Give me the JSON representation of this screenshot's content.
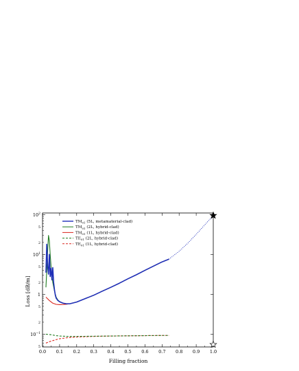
{
  "chart_data": {
    "type": "line",
    "title": "",
    "xlabel": "Filling fraction",
    "ylabel": "Loss [dB/m]",
    "xlim": [
      0,
      1
    ],
    "ylim_log10": [
      -1.32,
      2.04
    ],
    "yscale": "log",
    "grid": false,
    "legend_position": "top-left",
    "x_ticks": [
      "0.0",
      "0.1",
      "0.2",
      "0.3",
      "0.4",
      "0.5",
      "0.6",
      "0.7",
      "0.8",
      "0.9",
      "1.0"
    ],
    "y_tick_values": [
      0.1,
      1,
      10,
      100
    ],
    "y_minor_labels": [
      "5",
      "2",
      "5",
      "2",
      "5",
      "2",
      "5"
    ],
    "y_minor_values": [
      0.05,
      0.2,
      0.5,
      2,
      5,
      20,
      50
    ],
    "series": [
      {
        "name": "TM01 (5L, metamaterial-clad)",
        "legend_main": "TM",
        "legend_sub": "01",
        "legend_rest": " (5L, metamaterial-clad)",
        "color": "#1f2fb8",
        "dash": "solid",
        "width": 1.6,
        "x": [
          0.02,
          0.025,
          0.03,
          0.035,
          0.04,
          0.045,
          0.05,
          0.055,
          0.06,
          0.065,
          0.07,
          0.075,
          0.08,
          0.09,
          0.1,
          0.12,
          0.14,
          0.16,
          0.2,
          0.25,
          0.3,
          0.35,
          0.4,
          0.45,
          0.5,
          0.55,
          0.6,
          0.65,
          0.7,
          0.74
        ],
        "y": [
          3.5,
          18,
          5,
          3.2,
          10,
          2.8,
          4.5,
          2.3,
          4.7,
          2.0,
          1.3,
          0.95,
          0.8,
          0.7,
          0.65,
          0.6,
          0.58,
          0.58,
          0.64,
          0.78,
          0.95,
          1.2,
          1.5,
          1.9,
          2.45,
          3.1,
          4.0,
          5.1,
          6.5,
          7.6
        ]
      },
      {
        "name": "TM01 (2L, hybrid-clad)",
        "legend_main": "TM",
        "legend_sub": "01",
        "legend_rest": " (2L, hybrid-clad)",
        "color": "#1e7a1e",
        "dash": "solid",
        "width": 1.1,
        "x": [
          0.02,
          0.025,
          0.03,
          0.035,
          0.04,
          0.045,
          0.05,
          0.055,
          0.06,
          0.07,
          0.08,
          0.09,
          0.1,
          0.12,
          0.14,
          0.16,
          0.2,
          0.25,
          0.3,
          0.35,
          0.4,
          0.45,
          0.5,
          0.55,
          0.6,
          0.65,
          0.7,
          0.74
        ],
        "y": [
          1.5,
          4,
          12,
          30,
          22,
          10,
          5,
          3,
          2.0,
          1.2,
          0.85,
          0.72,
          0.66,
          0.6,
          0.58,
          0.58,
          0.64,
          0.78,
          0.95,
          1.2,
          1.5,
          1.9,
          2.45,
          3.1,
          4.0,
          5.1,
          6.5,
          7.6
        ]
      },
      {
        "name": "TM01 (1L, hybrid-clad)",
        "legend_main": "TM",
        "legend_sub": "01",
        "legend_rest": " (1L, hybrid-clad)",
        "color": "#d9241c",
        "dash": "solid",
        "width": 1.1,
        "x": [
          0.02,
          0.04,
          0.06,
          0.08,
          0.1,
          0.12,
          0.14,
          0.16,
          0.2,
          0.25,
          0.3,
          0.35,
          0.4,
          0.45,
          0.5,
          0.55,
          0.6,
          0.65,
          0.7,
          0.74
        ],
        "y": [
          0.85,
          0.7,
          0.6,
          0.56,
          0.55,
          0.555,
          0.565,
          0.58,
          0.64,
          0.78,
          0.95,
          1.2,
          1.5,
          1.9,
          2.45,
          3.1,
          4.0,
          5.1,
          6.5,
          7.6
        ]
      },
      {
        "name": "TE01 (2L, hybrid-clad)",
        "legend_main": "TE",
        "legend_sub": "01",
        "legend_rest": " (2L, hybrid-clad)",
        "color": "#1e7a1e",
        "dash": "dashed",
        "width": 1.1,
        "x": [
          0.02,
          0.05,
          0.08,
          0.1,
          0.15,
          0.2,
          0.3,
          0.4,
          0.5,
          0.6,
          0.7,
          0.74
        ],
        "y": [
          0.1,
          0.097,
          0.092,
          0.09,
          0.088,
          0.088,
          0.089,
          0.09,
          0.091,
          0.092,
          0.093,
          0.093
        ]
      },
      {
        "name": "TE01 (1L, hybrid-clad)",
        "legend_main": "TE",
        "legend_sub": "01",
        "legend_rest": " (1L, hybrid-clad)",
        "color": "#d9241c",
        "dash": "dashed",
        "width": 1.1,
        "x": [
          0.02,
          0.05,
          0.08,
          0.1,
          0.15,
          0.2,
          0.3,
          0.4,
          0.5,
          0.6,
          0.7,
          0.74
        ],
        "y": [
          0.06,
          0.067,
          0.073,
          0.077,
          0.082,
          0.085,
          0.088,
          0.09,
          0.091,
          0.092,
          0.093,
          0.093
        ]
      }
    ],
    "extrapolation": {
      "color": "#1f2fb8",
      "dash": "dotted",
      "x": [
        0.74,
        0.8,
        0.85,
        0.9,
        0.95,
        1.0
      ],
      "y": [
        7.6,
        12,
        19,
        32,
        55,
        95
      ]
    },
    "markers": [
      {
        "name": "filled-star",
        "x": 1.0,
        "y": 95,
        "filled": true
      },
      {
        "name": "open-star",
        "x": 1.0,
        "y": 0.055,
        "filled": false
      }
    ]
  }
}
